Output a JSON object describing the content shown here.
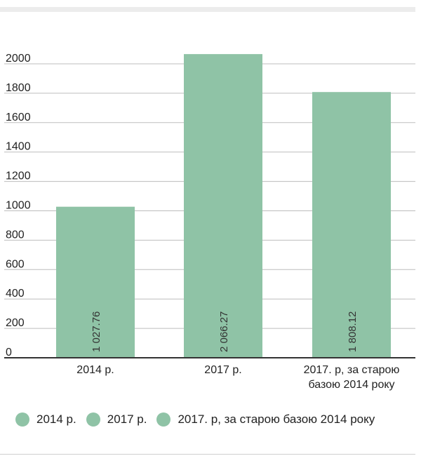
{
  "chart_data": {
    "type": "bar",
    "categories": [
      "2014 р.",
      "2017 р.",
      "2017. р, за старою базою 2014 року"
    ],
    "category_lines": [
      [
        "2014 р."
      ],
      [
        "2017 р."
      ],
      [
        "2017. р, за старою",
        "базою 2014 року"
      ]
    ],
    "values": [
      1027.76,
      2066.27,
      1808.12
    ],
    "data_labels": [
      "1 027.76",
      "2 066.27",
      "1 808.12"
    ],
    "ylim": [
      0,
      2000
    ],
    "yticks": [
      0,
      200,
      400,
      600,
      800,
      1000,
      1200,
      1400,
      1600,
      1800,
      2000
    ],
    "grid": true,
    "legend_position": "bottom",
    "bar_color": "#8fc3a6",
    "grid_color": "#bdbdbd",
    "axis_color": "#333333"
  },
  "legend": {
    "items": [
      {
        "label": "2014 р.",
        "color": "#8fc3a6"
      },
      {
        "label": "2017 р.",
        "color": "#8fc3a6"
      },
      {
        "label": "2017. р, за старою базою 2014 року",
        "color": "#8fc3a6"
      }
    ]
  }
}
